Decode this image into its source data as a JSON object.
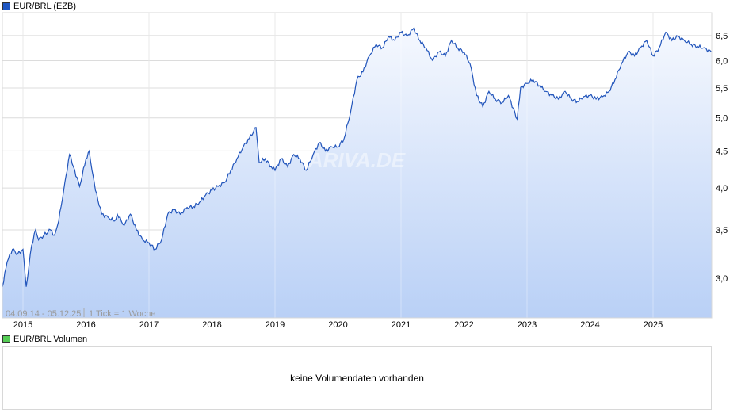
{
  "legend": {
    "price_label": "EUR/BRL (EZB)",
    "price_color": "#1f57c3",
    "volume_label": "EUR/BRL Volumen",
    "volume_color": "#55cc55"
  },
  "volume": {
    "empty_message": "keine Volumendaten vorhanden"
  },
  "watermark": "ARIVA.DE",
  "chart_data": {
    "type": "area",
    "title": "EUR/BRL (EZB)",
    "range_label": "04.09.14 - 05.12.25",
    "tick_label": "1 Tick = 1 Woche",
    "y_scale": "log",
    "ylim": [
      2.85,
      6.9
    ],
    "y_axis_position": "right",
    "y_ticks": [
      "3,0",
      "3,5",
      "4,0",
      "4,5",
      "5,0",
      "5,5",
      "6,0",
      "6,5"
    ],
    "y_tick_values": [
      3.0,
      3.5,
      4.0,
      4.5,
      5.0,
      5.5,
      6.0,
      6.5
    ],
    "x_ticks": [
      "2015",
      "2016",
      "2017",
      "2018",
      "2019",
      "2020",
      "2021",
      "2022",
      "2023",
      "2024",
      "2025"
    ],
    "xlim": [
      "2014-09-04",
      "2025-12-05"
    ],
    "grid": true,
    "line_color": "#2255bb",
    "fill_top_color": "#f5f8fe",
    "fill_bottom_color": "#b9d0f6",
    "points": [
      [
        "2014-09-04",
        2.92
      ],
      [
        "2014-10-01",
        3.16
      ],
      [
        "2014-11-01",
        3.29
      ],
      [
        "2014-12-01",
        3.24
      ],
      [
        "2015-01-01",
        3.29
      ],
      [
        "2015-01-20",
        2.92
      ],
      [
        "2015-02-20",
        3.33
      ],
      [
        "2015-03-15",
        3.5
      ],
      [
        "2015-04-01",
        3.39
      ],
      [
        "2015-05-01",
        3.44
      ],
      [
        "2015-06-10",
        3.5
      ],
      [
        "2015-07-01",
        3.44
      ],
      [
        "2015-07-20",
        3.55
      ],
      [
        "2015-08-10",
        3.77
      ],
      [
        "2015-08-25",
        3.97
      ],
      [
        "2015-09-28",
        4.45
      ],
      [
        "2015-10-20",
        4.28
      ],
      [
        "2015-11-25",
        4.02
      ],
      [
        "2016-01-01",
        4.39
      ],
      [
        "2016-01-20",
        4.5
      ],
      [
        "2016-02-05",
        4.23
      ],
      [
        "2016-02-25",
        3.97
      ],
      [
        "2016-04-01",
        3.68
      ],
      [
        "2016-05-10",
        3.64
      ],
      [
        "2016-06-15",
        3.6
      ],
      [
        "2016-07-01",
        3.68
      ],
      [
        "2016-08-10",
        3.55
      ],
      [
        "2016-09-15",
        3.68
      ],
      [
        "2016-10-20",
        3.5
      ],
      [
        "2016-11-25",
        3.39
      ],
      [
        "2017-01-01",
        3.36
      ],
      [
        "2017-02-05",
        3.29
      ],
      [
        "2017-03-15",
        3.39
      ],
      [
        "2017-04-20",
        3.68
      ],
      [
        "2017-05-25",
        3.73
      ],
      [
        "2017-07-01",
        3.68
      ],
      [
        "2017-08-10",
        3.76
      ],
      [
        "2017-09-15",
        3.77
      ],
      [
        "2017-10-20",
        3.82
      ],
      [
        "2017-11-25",
        3.91
      ],
      [
        "2018-01-01",
        3.97
      ],
      [
        "2018-02-05",
        4.02
      ],
      [
        "2018-03-15",
        4.07
      ],
      [
        "2018-04-20",
        4.23
      ],
      [
        "2018-05-25",
        4.39
      ],
      [
        "2018-07-01",
        4.56
      ],
      [
        "2018-08-05",
        4.68
      ],
      [
        "2018-09-13",
        4.85
      ],
      [
        "2018-10-01",
        4.34
      ],
      [
        "2018-11-05",
        4.39
      ],
      [
        "2018-12-10",
        4.28
      ],
      [
        "2019-01-01",
        4.23
      ],
      [
        "2019-02-05",
        4.39
      ],
      [
        "2019-03-15",
        4.28
      ],
      [
        "2019-04-20",
        4.45
      ],
      [
        "2019-05-25",
        4.39
      ],
      [
        "2019-07-01",
        4.23
      ],
      [
        "2019-08-10",
        4.45
      ],
      [
        "2019-09-15",
        4.62
      ],
      [
        "2019-10-20",
        4.5
      ],
      [
        "2019-11-25",
        4.56
      ],
      [
        "2020-01-01",
        4.56
      ],
      [
        "2020-02-05",
        4.68
      ],
      [
        "2020-03-15",
        5.11
      ],
      [
        "2020-04-20",
        5.65
      ],
      [
        "2020-05-25",
        5.79
      ],
      [
        "2020-07-01",
        6.09
      ],
      [
        "2020-08-10",
        6.32
      ],
      [
        "2020-09-15",
        6.25
      ],
      [
        "2020-10-20",
        6.48
      ],
      [
        "2020-11-25",
        6.4
      ],
      [
        "2021-01-01",
        6.57
      ],
      [
        "2021-02-05",
        6.48
      ],
      [
        "2021-03-15",
        6.65
      ],
      [
        "2021-04-20",
        6.4
      ],
      [
        "2021-05-25",
        6.25
      ],
      [
        "2021-07-01",
        6.01
      ],
      [
        "2021-08-10",
        6.17
      ],
      [
        "2021-09-15",
        6.09
      ],
      [
        "2021-10-20",
        6.4
      ],
      [
        "2021-11-25",
        6.25
      ],
      [
        "2022-01-01",
        6.17
      ],
      [
        "2022-02-05",
        5.94
      ],
      [
        "2022-03-15",
        5.37
      ],
      [
        "2022-04-20",
        5.18
      ],
      [
        "2022-05-25",
        5.44
      ],
      [
        "2022-07-01",
        5.31
      ],
      [
        "2022-08-10",
        5.25
      ],
      [
        "2022-09-15",
        5.37
      ],
      [
        "2022-11-05",
        4.98
      ],
      [
        "2022-11-25",
        5.51
      ],
      [
        "2023-01-01",
        5.58
      ],
      [
        "2023-02-05",
        5.65
      ],
      [
        "2023-03-15",
        5.54
      ],
      [
        "2023-04-20",
        5.44
      ],
      [
        "2023-05-25",
        5.37
      ],
      [
        "2023-07-01",
        5.31
      ],
      [
        "2023-08-10",
        5.44
      ],
      [
        "2023-09-15",
        5.31
      ],
      [
        "2023-10-20",
        5.27
      ],
      [
        "2023-11-25",
        5.35
      ],
      [
        "2024-01-01",
        5.37
      ],
      [
        "2024-02-05",
        5.31
      ],
      [
        "2024-03-15",
        5.35
      ],
      [
        "2024-04-20",
        5.44
      ],
      [
        "2024-05-25",
        5.65
      ],
      [
        "2024-07-01",
        5.94
      ],
      [
        "2024-08-10",
        6.17
      ],
      [
        "2024-09-15",
        6.09
      ],
      [
        "2024-10-20",
        6.25
      ],
      [
        "2024-11-25",
        6.4
      ],
      [
        "2025-01-01",
        6.09
      ],
      [
        "2025-02-05",
        6.25
      ],
      [
        "2025-03-15",
        6.57
      ],
      [
        "2025-04-20",
        6.4
      ],
      [
        "2025-05-25",
        6.48
      ],
      [
        "2025-07-01",
        6.4
      ],
      [
        "2025-08-10",
        6.32
      ],
      [
        "2025-09-15",
        6.28
      ],
      [
        "2025-10-20",
        6.25
      ],
      [
        "2025-12-05",
        6.17
      ]
    ]
  }
}
